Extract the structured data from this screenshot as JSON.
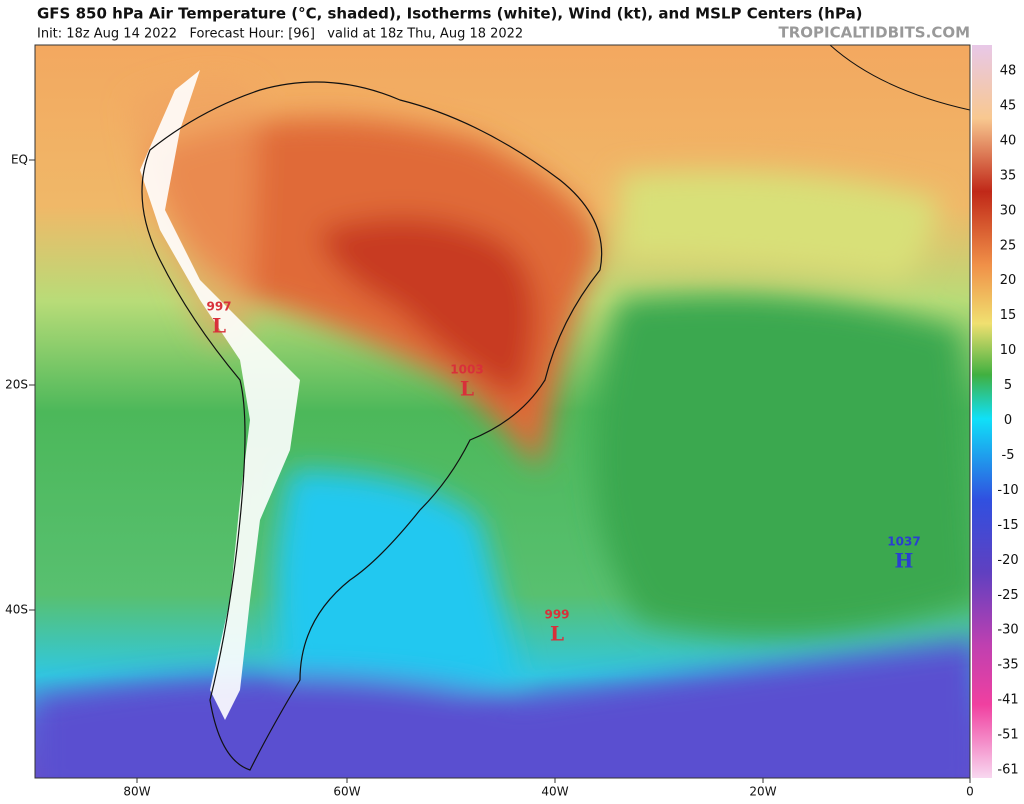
{
  "header": {
    "title": "GFS 850 hPa Air Temperature (°C, shaded), Isotherms (white), Wind (kt), and MSLP Centers (hPa)",
    "subtitle": "Init: 18z Aug 14 2022   Forecast Hour: [96]   valid at 18z Thu, Aug 18 2022",
    "site": "TROPICALTIDBITS.COM"
  },
  "map": {
    "lat_labels": [
      "EQ",
      "20S",
      "40S"
    ],
    "lon_labels": [
      "80W",
      "60W",
      "40W",
      "20W",
      "0"
    ],
    "centers": [
      {
        "pressure": "997",
        "letter": "L"
      },
      {
        "pressure": "1003",
        "letter": "L"
      },
      {
        "pressure": "999",
        "letter": "L"
      },
      {
        "pressure": "1037",
        "letter": "H"
      }
    ]
  },
  "colorbar": {
    "ticks": [
      48,
      45,
      40,
      35,
      30,
      25,
      20,
      15,
      10,
      5,
      0,
      -5,
      -10,
      -15,
      -20,
      -25,
      -30,
      -35,
      -41,
      -51,
      -61
    ]
  }
}
